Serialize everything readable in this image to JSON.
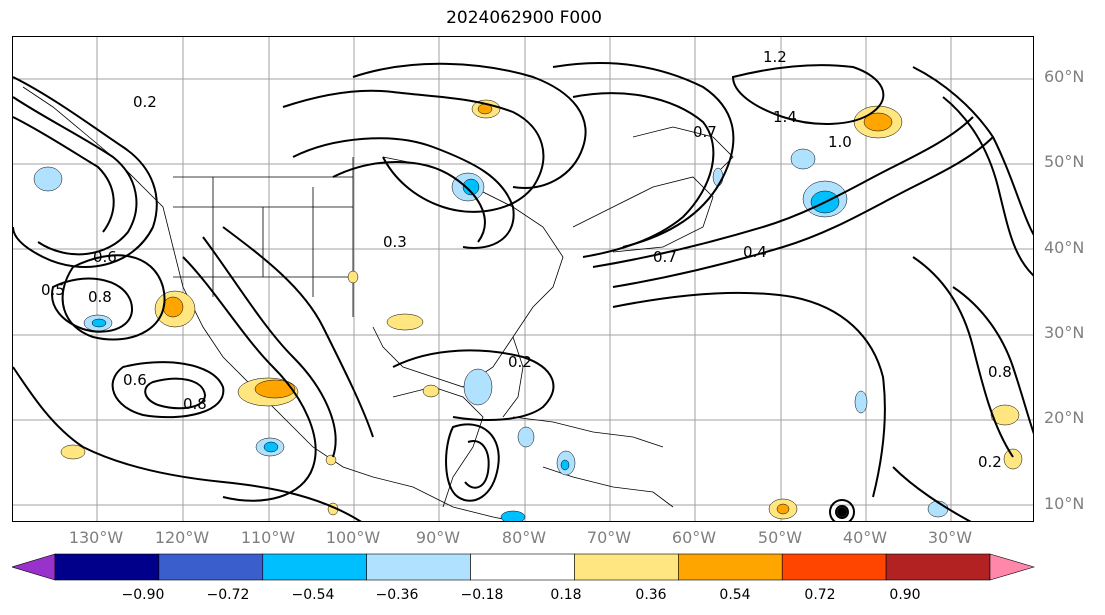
{
  "title": "2024062900 F000",
  "lat_labels": [
    "60°N",
    "50°N",
    "40°N",
    "30°N",
    "20°N",
    "10°N"
  ],
  "lon_labels": [
    "130°W",
    "120°W",
    "110°W",
    "100°W",
    "90°W",
    "80°W",
    "70°W",
    "60°W",
    "50°W",
    "40°W",
    "30°W"
  ],
  "colorbar": {
    "tick_labels": [
      "−0.90",
      "−0.72",
      "−0.54",
      "−0.36",
      "−0.18",
      "0.18",
      "0.36",
      "0.54",
      "0.72",
      "0.90"
    ],
    "colors": [
      "#9932cc",
      "#00008b",
      "#3a5fcd",
      "#00bfff",
      "#b0e2ff",
      "#ffffff",
      "#ffe680",
      "#ffa500",
      "#ff4500",
      "#b22222",
      "#ff88aa"
    ]
  },
  "contour_labels": [
    "0.2",
    "0.5",
    "0.6",
    "0.8",
    "0.7",
    "1.2",
    "1.4",
    "1.0",
    "0.4",
    "0.3",
    "0.8",
    "0.2",
    "0.6",
    "0.7",
    "0.8",
    "0.2"
  ]
}
